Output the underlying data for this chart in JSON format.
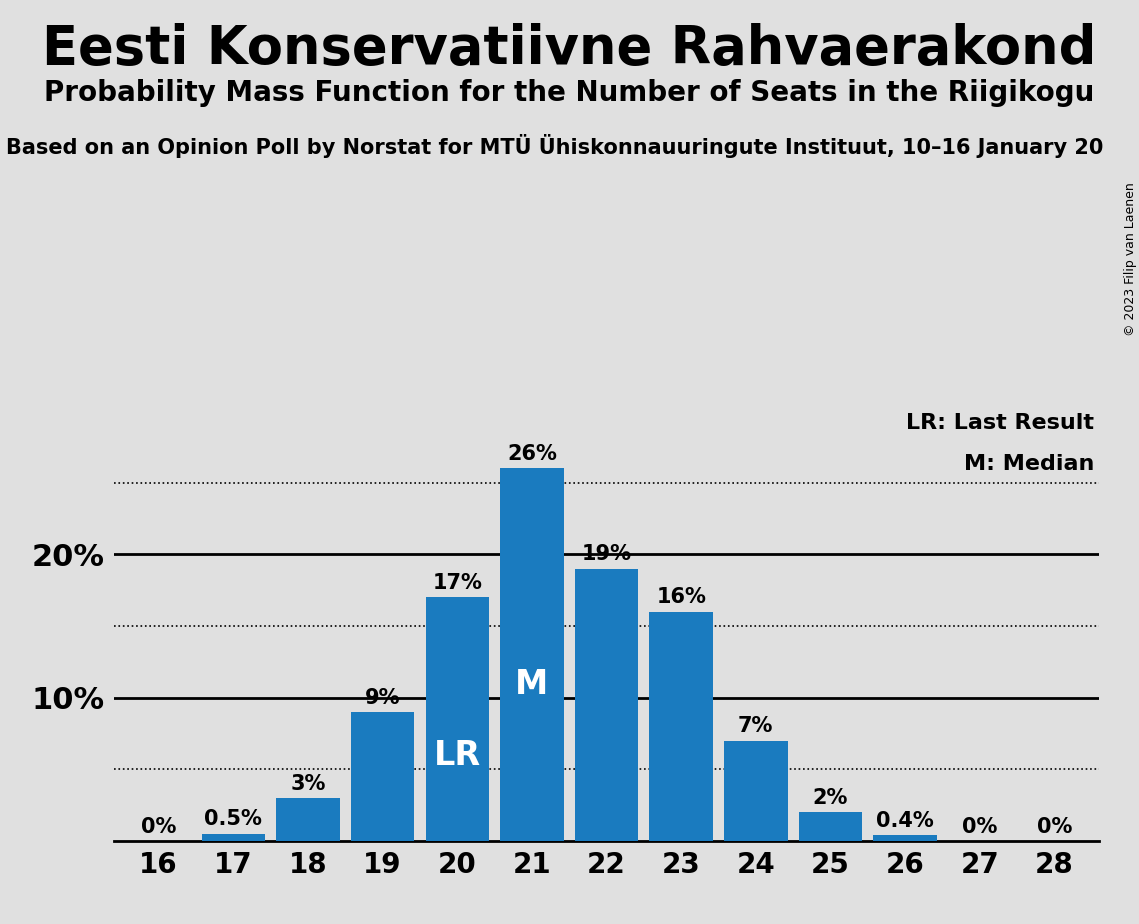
{
  "title": "Eesti Konservatiivne Rahvaerakond",
  "subtitle": "Probability Mass Function for the Number of Seats in the Riigikogu",
  "source_line": "Based on an Opinion Poll by Norstat for MTÜ Ühiskonnauuringute Instituut, 10–16 January 20",
  "copyright": "© 2023 Filip van Laenen",
  "seats": [
    16,
    17,
    18,
    19,
    20,
    21,
    22,
    23,
    24,
    25,
    26,
    27,
    28
  ],
  "probabilities": [
    0.0,
    0.5,
    3.0,
    9.0,
    17.0,
    26.0,
    19.0,
    16.0,
    7.0,
    2.0,
    0.4,
    0.0,
    0.0
  ],
  "bar_color": "#1a7bbf",
  "background_color": "#e0e0e0",
  "median_seat": 21,
  "last_result_seat": 20,
  "solid_line_ticks": [
    10,
    20
  ],
  "dotted_line_ticks": [
    5,
    15,
    25
  ],
  "ylim": [
    0,
    30
  ],
  "bar_label_fontsize": 15,
  "axis_tick_fontsize": 20,
  "ytick_fontsize": 22,
  "title_fontsize": 38,
  "subtitle_fontsize": 20,
  "source_fontsize": 15,
  "legend_fontsize": 16,
  "inner_label_fontsize": 24
}
